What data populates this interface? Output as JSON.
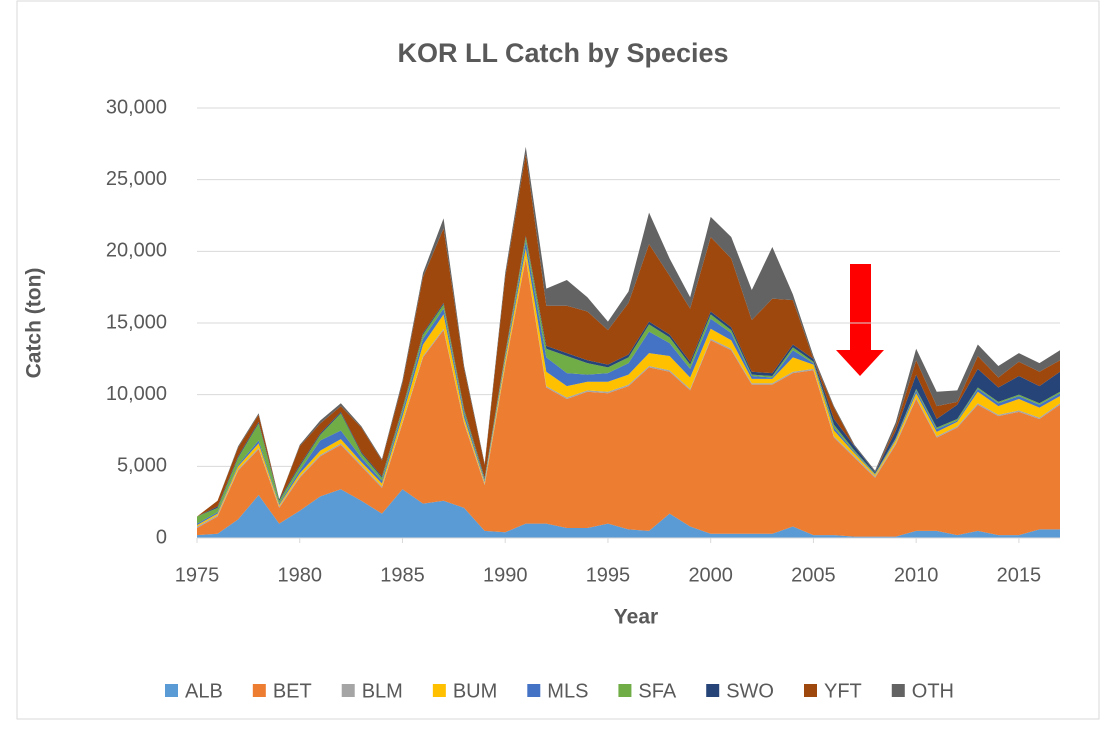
{
  "chart_data": {
    "type": "area",
    "stacked": true,
    "title": "KOR LL Catch by Species",
    "x_label": "Year",
    "y_label": "Catch (ton)",
    "x": [
      1975,
      1976,
      1977,
      1978,
      1979,
      1980,
      1981,
      1982,
      1983,
      1984,
      1985,
      1986,
      1987,
      1988,
      1989,
      1990,
      1991,
      1992,
      1993,
      1994,
      1995,
      1996,
      1997,
      1998,
      1999,
      2000,
      2001,
      2002,
      2003,
      2004,
      2005,
      2006,
      2007,
      2008,
      2009,
      2010,
      2011,
      2012,
      2013,
      2014,
      2015,
      2016,
      2017
    ],
    "xlim": [
      1975,
      2017
    ],
    "xticks": [
      1975,
      1980,
      1985,
      1990,
      1995,
      2000,
      2005,
      2010,
      2015
    ],
    "ylim": [
      0,
      30000
    ],
    "yticks": [
      0,
      {
        "value": 5000,
        "label": "5,000"
      },
      {
        "value": 10000,
        "label": "10,000"
      },
      {
        "value": 15000,
        "label": "15,000"
      },
      {
        "value": 20000,
        "label": "20,000"
      },
      {
        "value": 25000,
        "label": "25,000"
      },
      {
        "value": 30000,
        "label": "30,000"
      }
    ],
    "grid": true,
    "legend": "bottom",
    "series": [
      {
        "name": "ALB",
        "color": "#5b9bd5",
        "values": [
          200,
          300,
          1300,
          3000,
          1000,
          1900,
          2900,
          3400,
          2600,
          1700,
          3400,
          2400,
          2600,
          2100,
          500,
          400,
          1000,
          1000,
          700,
          700,
          1000,
          600,
          500,
          1700,
          800,
          300,
          300,
          300,
          300,
          800,
          200,
          200,
          100,
          100,
          100,
          500,
          500,
          200,
          500,
          200,
          200,
          600,
          600
        ]
      },
      {
        "name": "BET",
        "color": "#ed7d31",
        "values": [
          500,
          1200,
          3400,
          3200,
          1100,
          2300,
          2800,
          3100,
          2400,
          1800,
          4600,
          10200,
          11900,
          5900,
          3200,
          11600,
          18500,
          9500,
          9000,
          9500,
          9100,
          10000,
          11400,
          9900,
          9500,
          13500,
          12800,
          10400,
          10400,
          10700,
          11500,
          6800,
          5500,
          4100,
          6400,
          9200,
          6500,
          7500,
          8800,
          8300,
          8600,
          7700,
          8700
        ]
      },
      {
        "name": "BLM",
        "color": "#a5a5a5",
        "values": [
          100,
          100,
          100,
          100,
          100,
          100,
          100,
          100,
          100,
          100,
          100,
          100,
          100,
          100,
          100,
          100,
          100,
          100,
          100,
          100,
          100,
          100,
          100,
          100,
          100,
          100,
          100,
          100,
          100,
          100,
          100,
          100,
          100,
          100,
          100,
          100,
          100,
          100,
          100,
          100,
          100,
          100,
          100
        ]
      },
      {
        "name": "BUM",
        "color": "#ffc000",
        "values": [
          100,
          100,
          200,
          300,
          100,
          200,
          300,
          300,
          200,
          200,
          400,
          800,
          1000,
          300,
          100,
          300,
          600,
          1000,
          800,
          600,
          700,
          700,
          900,
          1000,
          800,
          700,
          600,
          300,
          300,
          1000,
          300,
          400,
          200,
          100,
          200,
          300,
          300,
          300,
          800,
          600,
          800,
          700,
          500
        ]
      },
      {
        "name": "MLS",
        "color": "#4472c4",
        "values": [
          100,
          100,
          100,
          200,
          100,
          200,
          700,
          600,
          300,
          200,
          300,
          400,
          400,
          300,
          100,
          200,
          500,
          1000,
          900,
          500,
          600,
          800,
          1500,
          900,
          600,
          700,
          500,
          200,
          100,
          500,
          100,
          200,
          100,
          50,
          100,
          200,
          200,
          100,
          200,
          200,
          200,
          200,
          200
        ]
      },
      {
        "name": "SFA",
        "color": "#70ad47",
        "values": [
          500,
          300,
          500,
          1200,
          200,
          300,
          400,
          1200,
          300,
          200,
          200,
          300,
          300,
          200,
          100,
          200,
          300,
          600,
          1200,
          800,
          400,
          400,
          500,
          400,
          300,
          300,
          200,
          100,
          100,
          200,
          100,
          200,
          100,
          50,
          50,
          100,
          100,
          100,
          100,
          100,
          100,
          100,
          100
        ]
      },
      {
        "name": "SWO",
        "color": "#264478",
        "values": [
          0,
          100,
          100,
          100,
          100,
          100,
          100,
          100,
          100,
          100,
          100,
          100,
          100,
          100,
          100,
          100,
          100,
          200,
          200,
          200,
          200,
          200,
          200,
          200,
          200,
          200,
          200,
          200,
          200,
          200,
          200,
          400,
          300,
          100,
          500,
          1000,
          600,
          1000,
          1300,
          1000,
          1300,
          1200,
          1400
        ]
      },
      {
        "name": "YFT",
        "color": "#9e480e",
        "values": [
          0,
          400,
          600,
          500,
          0,
          1300,
          700,
          400,
          1700,
          1100,
          1700,
          3900,
          5200,
          2800,
          900,
          5300,
          5700,
          2800,
          3300,
          3400,
          2400,
          3600,
          5400,
          4100,
          3700,
          5200,
          4800,
          3600,
          5200,
          3100,
          0,
          800,
          0,
          0,
          300,
          1000,
          900,
          200,
          900,
          700,
          1000,
          1000,
          800
        ]
      },
      {
        "name": "OTH",
        "color": "#636363",
        "values": [
          0,
          0,
          100,
          100,
          0,
          100,
          200,
          200,
          100,
          100,
          200,
          300,
          700,
          200,
          100,
          300,
          500,
          1200,
          1800,
          1000,
          600,
          800,
          2200,
          1200,
          800,
          1400,
          1500,
          2100,
          3600,
          400,
          200,
          100,
          100,
          100,
          300,
          800,
          1000,
          800,
          800,
          800,
          600,
          600,
          700
        ]
      }
    ]
  }
}
